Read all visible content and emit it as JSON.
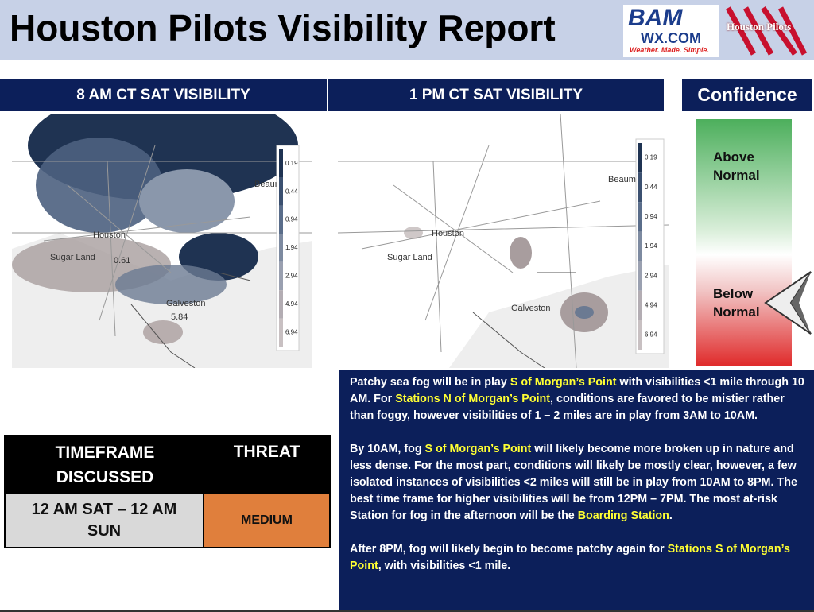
{
  "header": {
    "title": "Houston Pilots Visibility Report",
    "logo_bam": "BAM",
    "logo_wx": "WX.COM",
    "logo_tagline": "Weather. Made. Simple.",
    "logo_pilots": "Houston Pilots"
  },
  "panels": [
    {
      "title": "8 AM CT SAT VISIBILITY",
      "map_labels": [
        "Beaum",
        "Houston",
        "Sugar Land",
        "0.61",
        "Galveston",
        "5.84"
      ]
    },
    {
      "title": "1 PM CT SAT VISIBILITY",
      "map_labels": [
        "Beaum",
        "Houston",
        "Sugar Land",
        "Galveston"
      ]
    }
  ],
  "legend": [
    "0.19",
    "0.44",
    "0.94",
    "1.94",
    "2.94",
    "4.94",
    "6.94"
  ],
  "confidence": {
    "title": "Confidence",
    "above": "Above Normal",
    "below": "Below Normal"
  },
  "table": {
    "header": [
      "TIMEFRAME DISCUSSED",
      "THREAT"
    ],
    "row": [
      "12 AM SAT – 12 AM SUN",
      "MEDIUM"
    ]
  },
  "discussion": [
    [
      {
        "text": "Patchy sea fog will be in play ",
        "highlight": false
      },
      {
        "text": "S of Morgan’s Point",
        "highlight": true
      },
      {
        "text": " with visibilities <1 mile through 10 AM. For ",
        "highlight": false
      },
      {
        "text": "Stations N of Morgan’s Point",
        "highlight": true
      },
      {
        "text": ", conditions are favored to be mistier rather than foggy, however visibilities of 1 – 2 miles are in play from 3AM to 10AM.",
        "highlight": false
      }
    ],
    [
      {
        "text": "By 10AM, fog ",
        "highlight": false
      },
      {
        "text": "S of Morgan’s Point",
        "highlight": true
      },
      {
        "text": " will likely become more broken up in nature and less dense. For the most part, conditions will likely be mostly clear, however, a few isolated instances of visibilities <2 miles will still be in play from 10AM to 8PM. The best time frame for higher visibilities will be from 12PM – 7PM. The most at-risk Station for fog in the afternoon will be the ",
        "highlight": false
      },
      {
        "text": "Boarding Station",
        "highlight": true
      },
      {
        "text": ".",
        "highlight": false
      }
    ],
    [
      {
        "text": "After 8PM, fog will likely begin to become patchy again for ",
        "highlight": false
      },
      {
        "text": "Stations S of Morgan’s Point",
        "highlight": true
      },
      {
        "text": ", with visibilities <1 mile.",
        "highlight": false
      }
    ]
  ]
}
